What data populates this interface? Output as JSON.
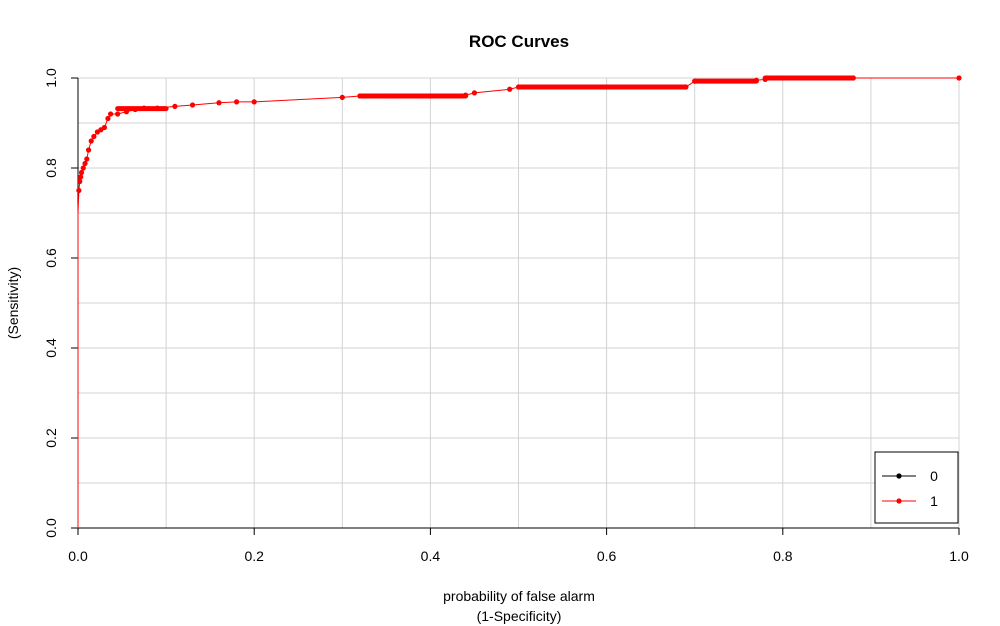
{
  "chart_data": {
    "type": "line",
    "title": "ROC Curves",
    "xlabel_line1": "probability of false alarm",
    "xlabel_line2": "(1-Specificity)",
    "ylabel_line2": "(Sensitivity)",
    "xlim": [
      0,
      1
    ],
    "ylim": [
      0,
      1
    ],
    "x_ticks": [
      "0.0",
      "0.2",
      "0.4",
      "0.6",
      "0.8",
      "1.0"
    ],
    "y_ticks": [
      "0.0",
      "0.2",
      "0.4",
      "0.6",
      "0.8",
      "1.0"
    ],
    "grid": true,
    "legend_position": "bottom-right",
    "series": [
      {
        "name": "0",
        "color": "#000000",
        "x": [],
        "y": []
      },
      {
        "name": "1",
        "color": "#ff0000",
        "x": [
          0.0,
          0.0,
          0.001,
          0.002,
          0.003,
          0.004,
          0.006,
          0.008,
          0.01,
          0.012,
          0.015,
          0.018,
          0.022,
          0.026,
          0.03,
          0.034,
          0.037,
          0.045,
          0.055,
          0.065,
          0.075,
          0.09,
          0.11,
          0.13,
          0.16,
          0.18,
          0.2,
          0.3,
          0.32,
          0.35,
          0.4,
          0.44,
          0.45,
          0.49,
          0.5,
          0.6,
          0.69,
          0.7,
          0.77,
          0.78,
          0.8,
          0.88,
          1.0
        ],
        "y": [
          0.0,
          0.7,
          0.75,
          0.77,
          0.78,
          0.79,
          0.8,
          0.81,
          0.82,
          0.84,
          0.86,
          0.87,
          0.88,
          0.885,
          0.89,
          0.91,
          0.92,
          0.92,
          0.925,
          0.93,
          0.933,
          0.933,
          0.937,
          0.94,
          0.945,
          0.947,
          0.947,
          0.957,
          0.96,
          0.96,
          0.96,
          0.962,
          0.967,
          0.975,
          0.98,
          0.98,
          0.98,
          0.993,
          0.995,
          0.997,
          1.0,
          1.0,
          1.0
        ]
      }
    ]
  }
}
